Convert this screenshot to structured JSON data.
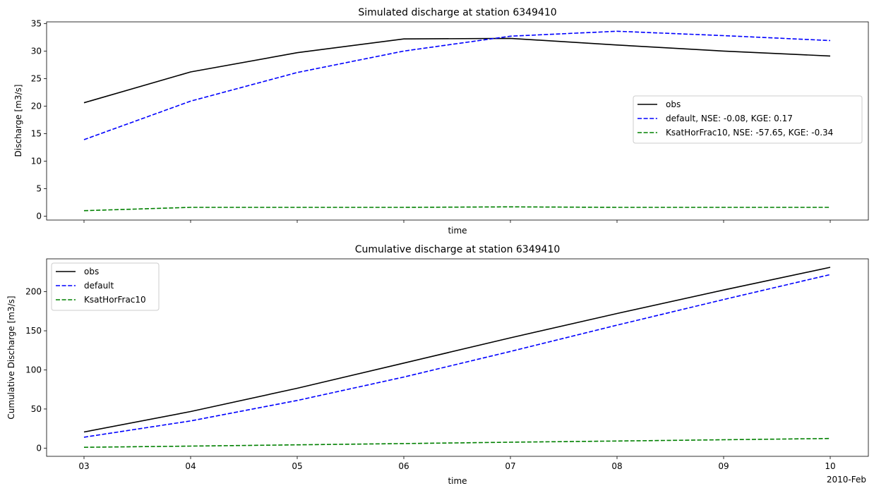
{
  "chart_data": [
    {
      "type": "line",
      "title": "Simulated discharge at station 6349410",
      "xlabel": "time",
      "ylabel": "Discharge [m3/s]",
      "x": [
        "03",
        "04",
        "05",
        "06",
        "07",
        "08",
        "09",
        "10"
      ],
      "x_dates": [
        "2010-02-03",
        "2010-02-04",
        "2010-02-05",
        "2010-02-06",
        "2010-02-07",
        "2010-02-08",
        "2010-02-09",
        "2010-02-10"
      ],
      "ylim": [
        -0.7,
        35.3
      ],
      "yticks": [
        0,
        5,
        10,
        15,
        20,
        25,
        30,
        35
      ],
      "legend_position": "center-right",
      "series": [
        {
          "name": "obs",
          "color": "#000000",
          "dash": "solid",
          "values": [
            20.6,
            26.2,
            29.7,
            32.2,
            32.3,
            31.1,
            30.0,
            29.1
          ]
        },
        {
          "name": "default, NSE: -0.08, KGE: 0.17",
          "color": "#0000ff",
          "dash": "dashed",
          "values": [
            13.9,
            20.9,
            26.1,
            30.0,
            32.7,
            33.6,
            32.8,
            31.9
          ]
        },
        {
          "name": "KsatHorFrac10, NSE: -57.65, KGE: -0.34",
          "color": "#008000",
          "dash": "dashed",
          "values": [
            1.0,
            1.6,
            1.6,
            1.6,
            1.7,
            1.6,
            1.6,
            1.6
          ]
        }
      ]
    },
    {
      "type": "line",
      "title": "Cumulative discharge at station 6349410",
      "xlabel": "time",
      "ylabel": "Cumulative Discharge [m3/s]",
      "x": [
        "03",
        "04",
        "05",
        "06",
        "07",
        "08",
        "09",
        "10"
      ],
      "x_dates": [
        "2010-02-03",
        "2010-02-04",
        "2010-02-05",
        "2010-02-06",
        "2010-02-07",
        "2010-02-08",
        "2010-02-09",
        "2010-02-10"
      ],
      "x_offset_label": "2010-Feb",
      "ylim": [
        -10.5,
        242
      ],
      "yticks": [
        0,
        50,
        100,
        150,
        200
      ],
      "legend_position": "upper-left",
      "series": [
        {
          "name": "obs",
          "color": "#000000",
          "dash": "solid",
          "values": [
            20.6,
            46.8,
            76.5,
            108.7,
            141.0,
            172.1,
            202.1,
            231.2
          ]
        },
        {
          "name": "default",
          "color": "#0000ff",
          "dash": "dashed",
          "values": [
            13.9,
            34.8,
            60.9,
            90.9,
            123.6,
            157.2,
            190.0,
            221.9
          ]
        },
        {
          "name": "KsatHorFrac10",
          "color": "#008000",
          "dash": "dashed",
          "values": [
            1.0,
            2.6,
            4.2,
            5.8,
            7.5,
            9.1,
            10.7,
            12.3
          ]
        }
      ]
    }
  ]
}
